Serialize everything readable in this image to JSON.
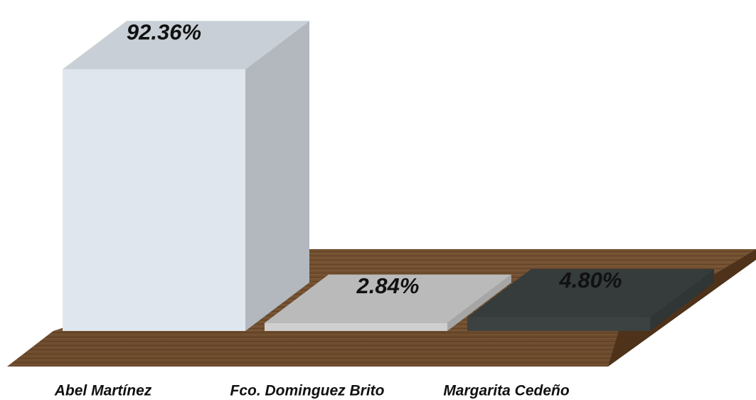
{
  "chart_data": {
    "type": "bar3d",
    "categories": [
      "Abel Martínez",
      "Fco. Dominguez Brito",
      "Margarita Cedeño"
    ],
    "values": [
      92.36,
      2.84,
      4.8
    ],
    "value_labels": [
      "92.36%",
      "2.84%",
      "4.80%"
    ],
    "colors": [
      "#dfe6ee",
      "#cfcfcf",
      "#3c4242"
    ]
  }
}
